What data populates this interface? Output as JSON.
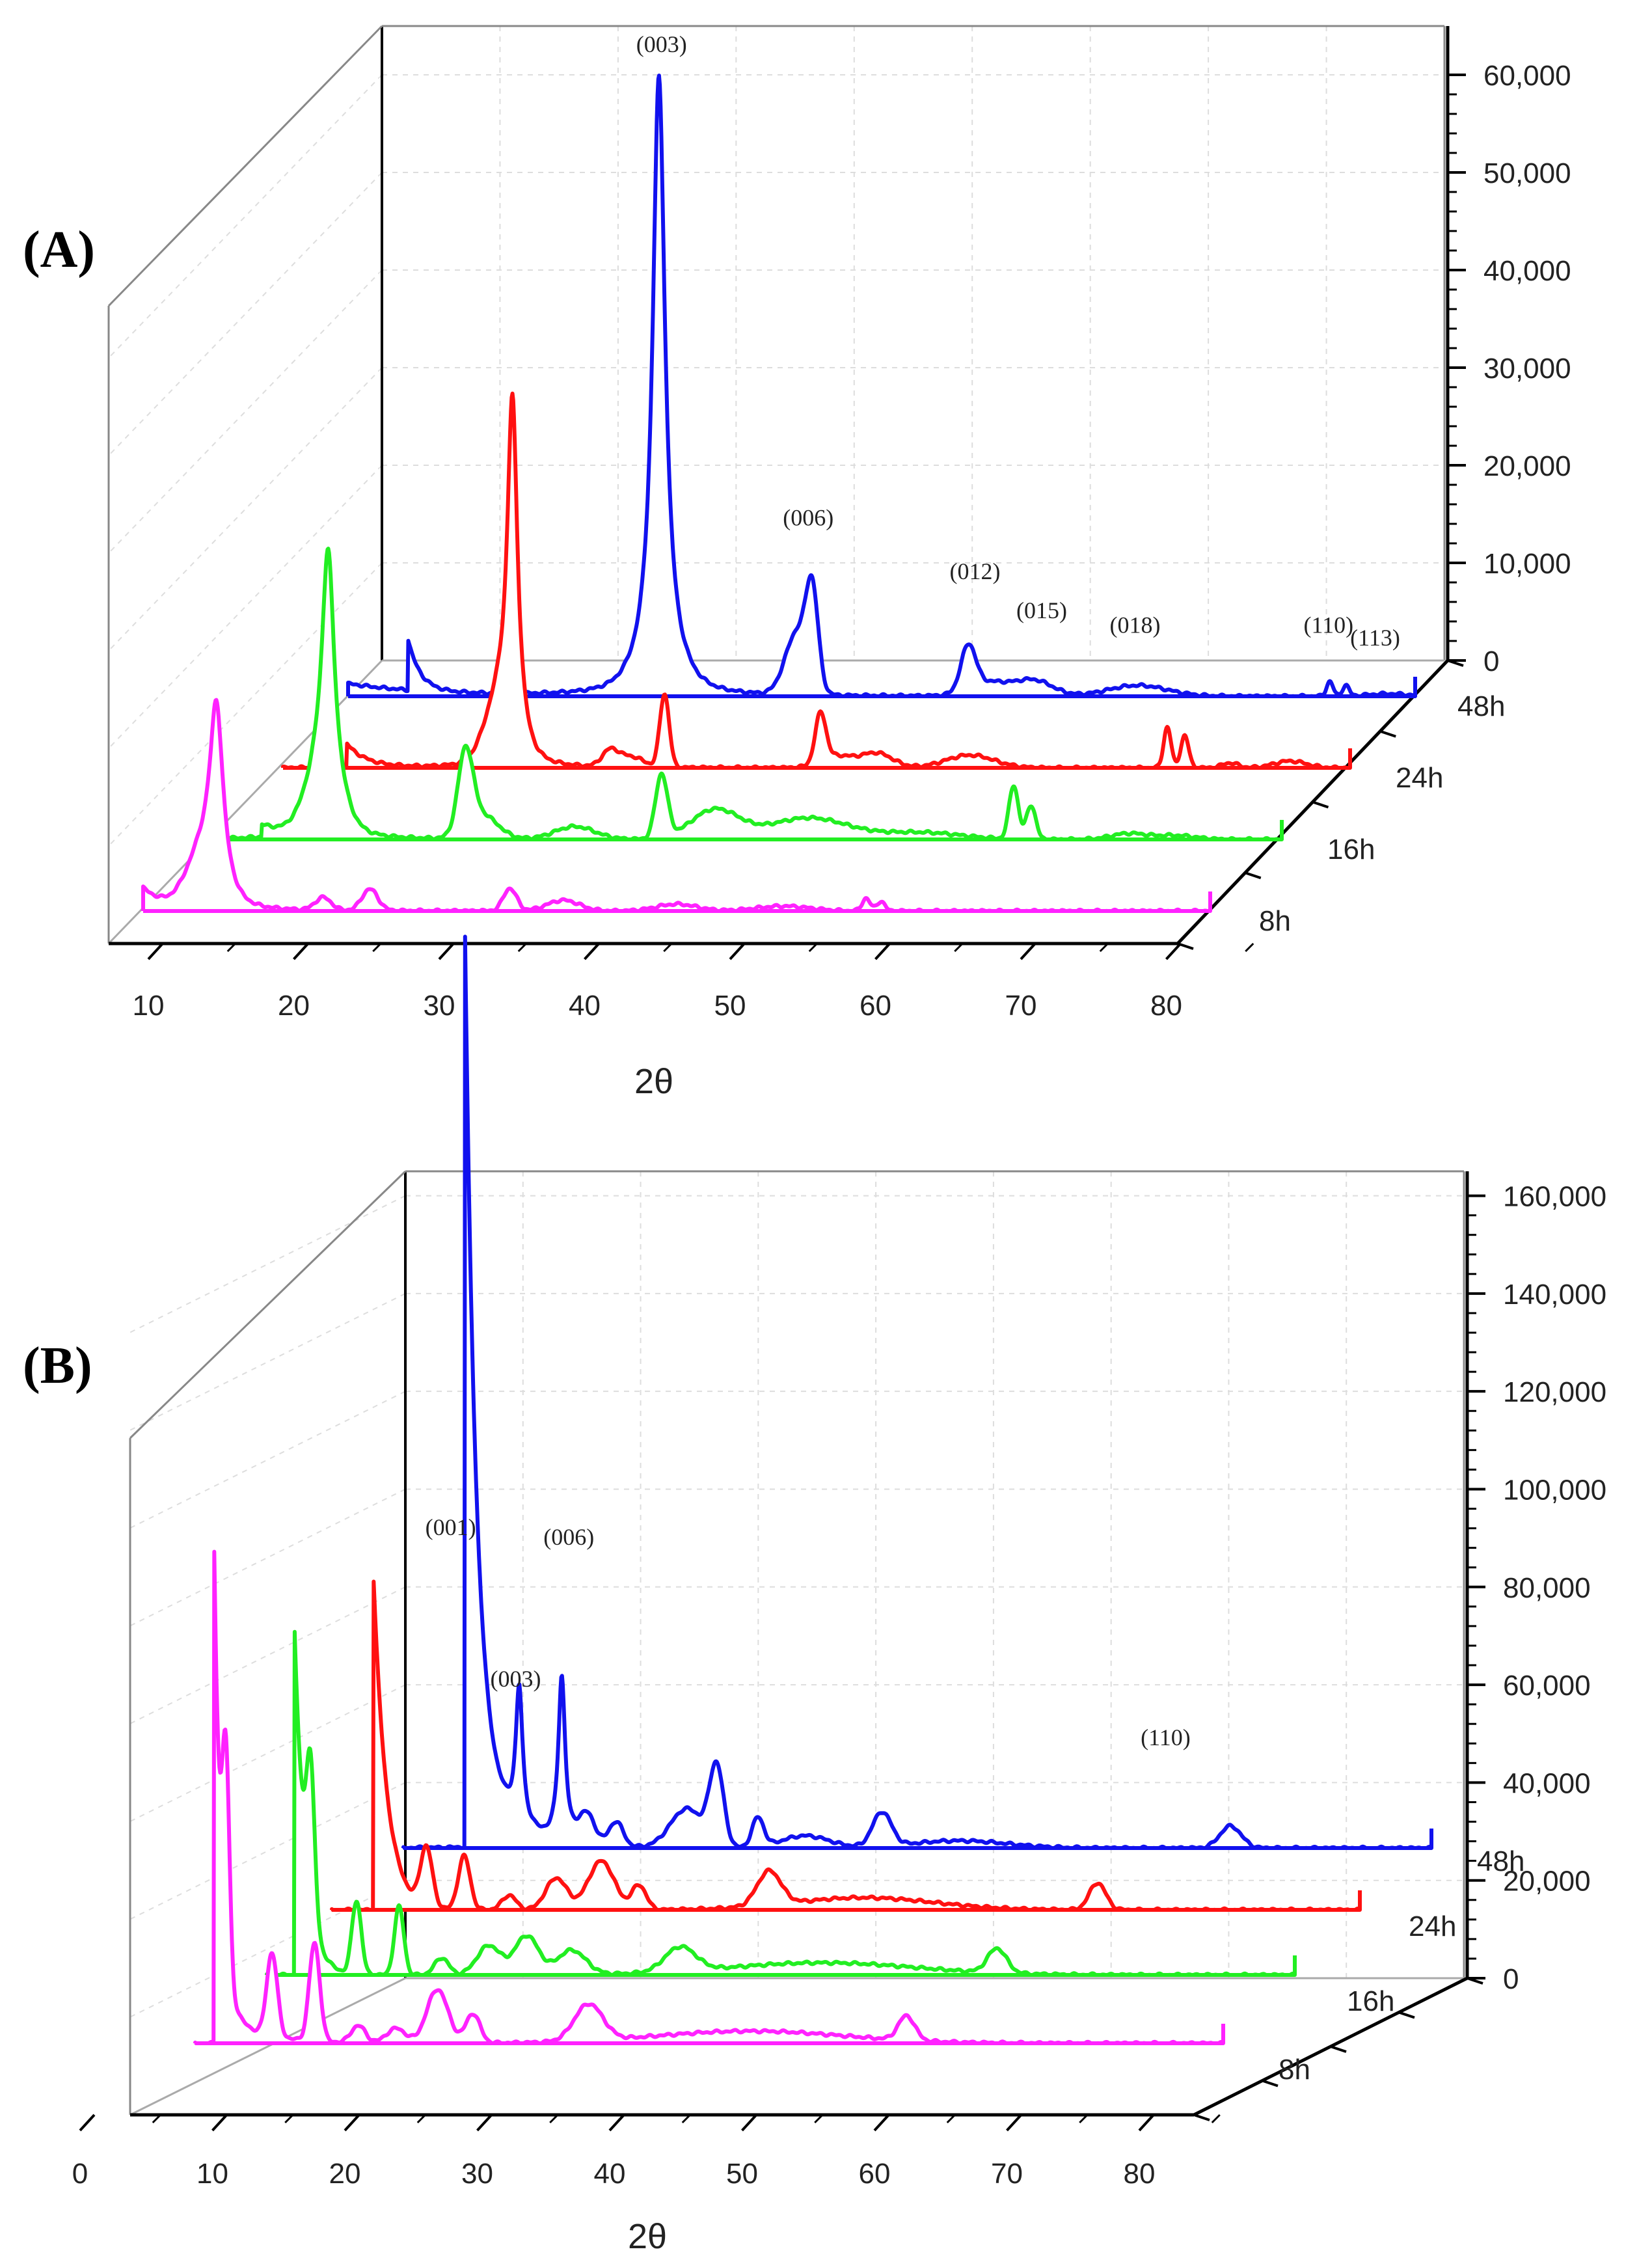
{
  "chart_data": [
    {
      "type": "line",
      "panel_label": "(A)",
      "xlabel": "2θ",
      "x_ticks": [
        "10",
        "20",
        "30",
        "40",
        "50",
        "60",
        "70",
        "80"
      ],
      "y_ticks": [
        "0",
        "10,000",
        "20,000",
        "30,000",
        "40,000",
        "50,000",
        "60,000"
      ],
      "ylim": [
        0,
        65000
      ],
      "series_names": [
        "8h",
        "16h",
        "24h",
        "48h"
      ],
      "colors": {
        "8h": "#ff22ff",
        "16h": "#22ee22",
        "24h": "#ff1111",
        "48h": "#1111ee"
      },
      "peak_labels": [
        {
          "text": "(003)",
          "x": 30.5,
          "y": 66000
        },
        {
          "text": "(006)",
          "x": 41.5,
          "y": 17500
        },
        {
          "text": "(012)",
          "x": 54,
          "y": 12000
        },
        {
          "text": "(015)",
          "x": 59,
          "y": 8000
        },
        {
          "text": "(018)",
          "x": 66,
          "y": 6500
        },
        {
          "text": "(110)",
          "x": 80.5,
          "y": 6500
        },
        {
          "text": "(113)",
          "x": 84,
          "y": 5200
        }
      ]
    },
    {
      "type": "line",
      "panel_label": "(B)",
      "xlabel": "2θ",
      "x_ticks": [
        "0",
        "10",
        "20",
        "30",
        "40",
        "50",
        "60",
        "70",
        "80"
      ],
      "y_ticks": [
        "0",
        "20,000",
        "40,000",
        "60,000",
        "80,000",
        "100,000",
        "120,000",
        "140,000",
        "160,000"
      ],
      "ylim": [
        0,
        165000
      ],
      "series_names": [
        "8h",
        "16h",
        "24h",
        "48h"
      ],
      "colors": {
        "8h": "#ff22ff",
        "16h": "#22ee22",
        "24h": "#ff1111",
        "48h": "#1111ee"
      },
      "peak_labels": [
        {
          "text": "(001)",
          "x": 7,
          "y": 64000
        },
        {
          "text": "(003)",
          "x": 12.5,
          "y": 33000
        },
        {
          "text": "(006)",
          "x": 17,
          "y": 62000
        },
        {
          "text": "(110)",
          "x": 67.5,
          "y": 21000
        }
      ]
    }
  ]
}
